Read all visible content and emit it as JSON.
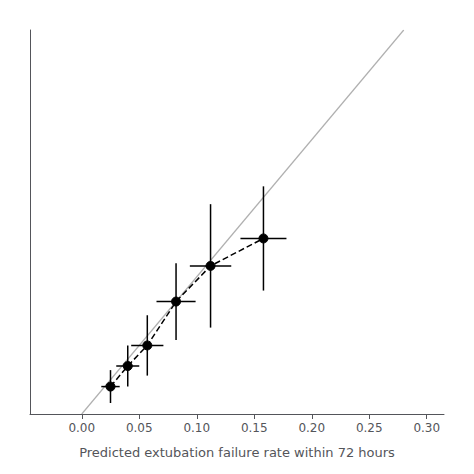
{
  "chart_data": {
    "type": "scatter",
    "xlabel": "Predicted extubation failure rate within 72 hours",
    "xlim": [
      -0.045,
      0.315
    ],
    "xticks": [
      {
        "value": 0,
        "label": "0.00"
      },
      0.05,
      {
        "value": 0.1,
        "label": "0.10"
      },
      0.15,
      {
        "value": 0.2,
        "label": "0.20"
      },
      0.25,
      {
        "value": 0.3,
        "label": "0.30"
      }
    ],
    "ylim": [
      0.0,
      0.28
    ],
    "yticks": [],
    "tick_labels": "x",
    "grid": false,
    "series": [
      {
        "type": "line",
        "color": "#b0b0b0",
        "line_style": "solid",
        "x": [
          0.0,
          0.28
        ],
        "values": [
          0.0,
          0.28
        ]
      },
      {
        "type": "scatter",
        "color": "#000000",
        "marker": "circle",
        "line_style": "dashed",
        "x": [
          0.025,
          0.04,
          0.057,
          0.082,
          0.112,
          0.158
        ],
        "values": [
          0.02,
          0.035,
          0.05,
          0.082,
          0.108,
          0.128
        ],
        "x_err_low": [
          0.008,
          0.01,
          0.014,
          0.017,
          0.018,
          0.02
        ],
        "x_err_high": [
          0.008,
          0.01,
          0.014,
          0.017,
          0.018,
          0.02
        ],
        "y_err_low": [
          0.012,
          0.015,
          0.022,
          0.028,
          0.045,
          0.038
        ],
        "y_err_high": [
          0.012,
          0.015,
          0.022,
          0.028,
          0.045,
          0.038
        ]
      }
    ]
  }
}
